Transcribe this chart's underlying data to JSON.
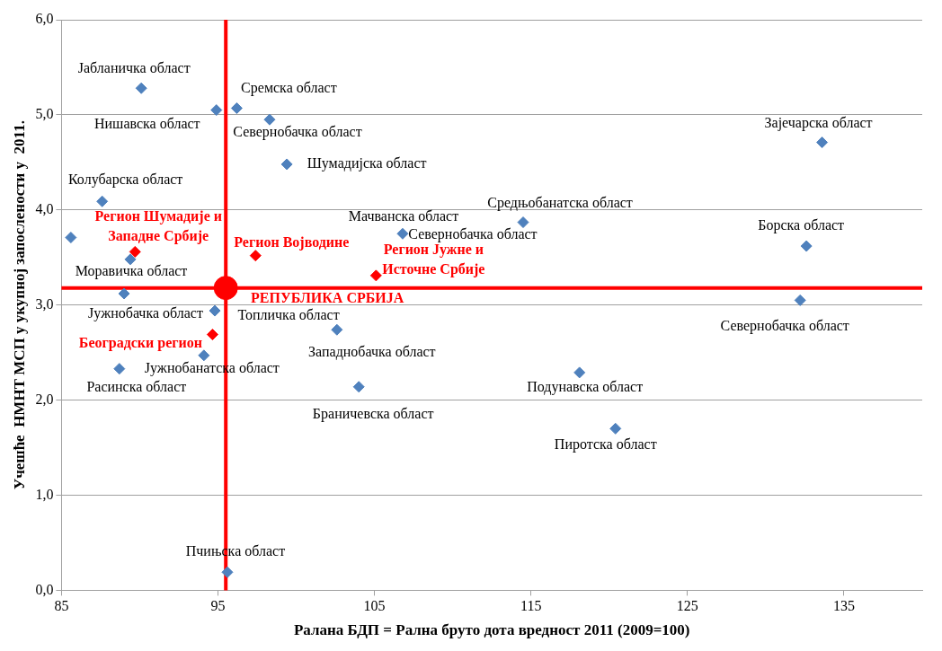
{
  "chart_data": {
    "type": "scatter",
    "xlabel": "Ралана БДП = Рална бруто дота вредност 2011 (2009=100)",
    "ylabel": "Учешће  НМНТ МСП у укупној запослености у  2011.",
    "xlim": [
      85,
      140
    ],
    "xticks": [
      85,
      95,
      105,
      115,
      125,
      135
    ],
    "ylim": [
      0,
      6
    ],
    "yticks": [
      {
        "value": 0,
        "label": "0,0"
      },
      {
        "value": 1,
        "label": "1,0"
      },
      {
        "value": 2,
        "label": "2,0"
      },
      {
        "value": 3,
        "label": "3,0"
      },
      {
        "value": 4,
        "label": "4,0"
      },
      {
        "value": 5,
        "label": "5,0"
      },
      {
        "value": 6,
        "label": "6,0"
      }
    ],
    "grid": "y",
    "legend": false,
    "marker": "diamond",
    "series": [
      {
        "color": "#4f81bd",
        "x": [
          90.1,
          94.9,
          96.2,
          98.3,
          99.4,
          87.6,
          106.8,
          114.5,
          133.6,
          132.6,
          85.6,
          89.4,
          89.0,
          94.8,
          102.6,
          94.1,
          88.7,
          104.0,
          118.1,
          120.4,
          132.2,
          95.6
        ],
        "values": [
          5.28,
          5.05,
          5.07,
          4.95,
          4.48,
          4.09,
          3.75,
          3.87,
          4.71,
          3.62,
          3.71,
          3.48,
          3.12,
          2.94,
          2.74,
          2.47,
          2.33,
          2.14,
          2.29,
          1.7,
          3.05,
          0.19
        ]
      },
      {
        "color": "#ff0000",
        "x": [
          89.7,
          97.4,
          105.1,
          94.65
        ],
        "values": [
          3.56,
          3.52,
          3.31,
          2.69
        ]
      },
      {
        "color": "#ff0000",
        "marker": "circle",
        "x": [
          95.5
        ],
        "values": [
          3.18
        ]
      }
    ],
    "ref_lines": [
      {
        "axis": "x",
        "value": 95.5,
        "color": "#ff0000"
      },
      {
        "axis": "y",
        "value": 3.18,
        "color": "#ff0000"
      }
    ],
    "annotations": [
      {
        "text": "Јабланичка област",
        "x": 90.1,
        "y": 5.28
      },
      {
        "text": "Нишавска област",
        "x": 94.9,
        "y": 5.05
      },
      {
        "text": "Сремска област",
        "x": 96.2,
        "y": 5.07
      },
      {
        "text": "Севернобачка област",
        "x": 98.3,
        "y": 4.95
      },
      {
        "text": "Шумадијска област",
        "x": 99.4,
        "y": 4.48
      },
      {
        "text": "Колубарска област",
        "x": 87.6,
        "y": 4.09
      },
      {
        "text": "Мачванска област",
        "x": 106.8,
        "y": 3.75
      },
      {
        "text": "Средњобанатска област",
        "x": 114.5,
        "y": 3.87
      },
      {
        "text": "Зајечарска област",
        "x": 133.6,
        "y": 4.71
      },
      {
        "text": "Борска област",
        "x": 132.6,
        "y": 3.62
      },
      {
        "text": "Севернобачка област",
        "x": 106.8,
        "y": 3.75
      },
      {
        "text": "Моравичка област",
        "x": 89.4,
        "y": 3.48
      },
      {
        "text": "Јужнобачка област",
        "x": 89.0,
        "y": 3.12
      },
      {
        "text": "Топличка област",
        "x": 94.8,
        "y": 2.94
      },
      {
        "text": "Западнобачка област",
        "x": 102.6,
        "y": 2.74
      },
      {
        "text": "Јужнобанатска област",
        "x": 94.1,
        "y": 2.47
      },
      {
        "text": "Расинска област",
        "x": 88.7,
        "y": 2.33
      },
      {
        "text": "Браничевска област",
        "x": 104.0,
        "y": 2.14
      },
      {
        "text": "Подунавска област",
        "x": 118.1,
        "y": 2.29
      },
      {
        "text": "Пиротска област",
        "x": 120.4,
        "y": 1.7
      },
      {
        "text": "Севернобачка област",
        "x": 132.2,
        "y": 3.05
      },
      {
        "text": "Пчињска област",
        "x": 95.6,
        "y": 0.19
      },
      {
        "text": "Регион Шумадије и\nЗападне Србије",
        "x": 89.7,
        "y": 3.56
      },
      {
        "text": "Регион Војводине",
        "x": 97.4,
        "y": 3.52
      },
      {
        "text": "Регион Јужне и\nИсточне Србије",
        "x": 105.1,
        "y": 3.31
      },
      {
        "text": "Београдски регион",
        "x": 94.65,
        "y": 2.69
      },
      {
        "text": "РЕПУБЛИКА СРБИЈА",
        "x": 95.5,
        "y": 3.18
      }
    ]
  }
}
